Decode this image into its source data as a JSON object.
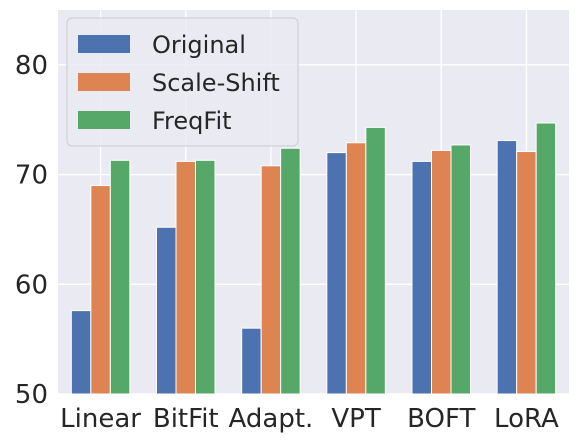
{
  "chart_data": {
    "type": "bar",
    "categories": [
      "Linear",
      "BitFit",
      "Adapt.",
      "VPT",
      "BOFT",
      "LoRA"
    ],
    "series": [
      {
        "name": "Original",
        "values": [
          57.6,
          65.2,
          56.0,
          72.0,
          71.2,
          73.1
        ],
        "color": "#4c72b0"
      },
      {
        "name": "Scale-Shift",
        "values": [
          69.0,
          71.2,
          70.8,
          72.9,
          72.2,
          72.1
        ],
        "color": "#dd8452"
      },
      {
        "name": "FreqFit",
        "values": [
          71.3,
          71.3,
          72.4,
          74.3,
          72.7,
          74.7
        ],
        "color": "#55a868"
      }
    ],
    "title": "",
    "xlabel": "",
    "ylabel": "",
    "ylim": [
      50,
      85
    ],
    "yticks": [
      50,
      60,
      70,
      80
    ],
    "grid": true,
    "legend_position": "top-left",
    "background_color": "#eaeaf2",
    "grid_color": "#ffffff"
  }
}
